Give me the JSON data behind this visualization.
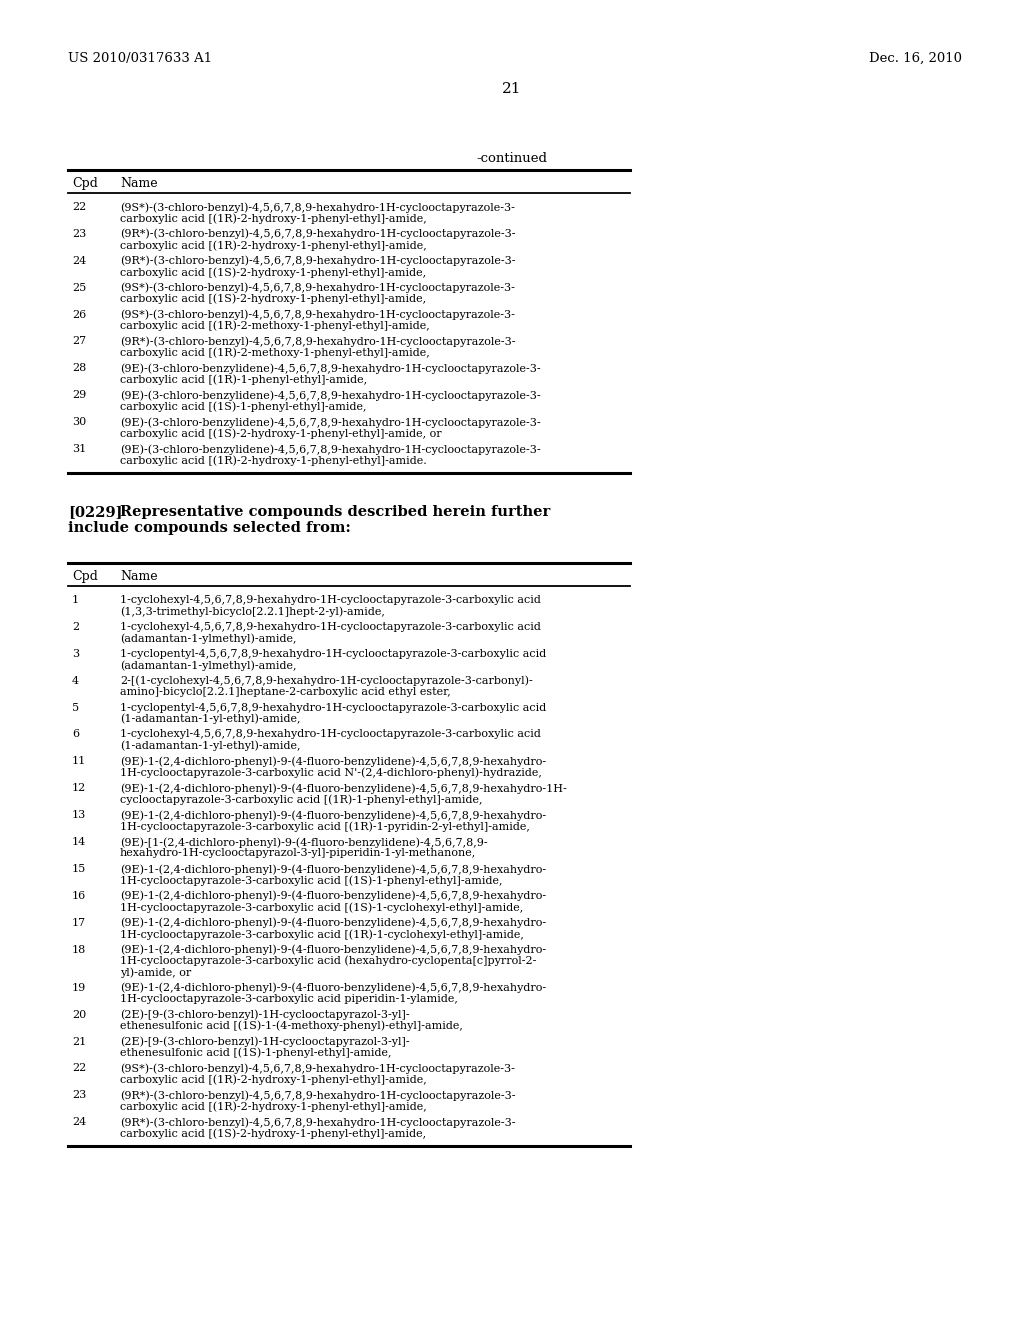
{
  "bg_color": "#ffffff",
  "header_left": "US 2010/0317633 A1",
  "header_right": "Dec. 16, 2010",
  "page_number": "21",
  "section1_title": "-continued",
  "section1_col1": "Cpd",
  "section1_col2": "Name",
  "section1_entries": [
    [
      "22",
      "(9S*)-(3-chloro-benzyl)-4,5,6,7,8,9-hexahydro-1H-cyclooctapyrazole-3-\ncarboxylic acid [(1R)-2-hydroxy-1-phenyl-ethyl]-amide,"
    ],
    [
      "23",
      "(9R*)-(3-chloro-benzyl)-4,5,6,7,8,9-hexahydro-1H-cyclooctapyrazole-3-\ncarboxylic acid [(1R)-2-hydroxy-1-phenyl-ethyl]-amide,"
    ],
    [
      "24",
      "(9R*)-(3-chloro-benzyl)-4,5,6,7,8,9-hexahydro-1H-cyclooctapyrazole-3-\ncarboxylic acid [(1S)-2-hydroxy-1-phenyl-ethyl]-amide,"
    ],
    [
      "25",
      "(9S*)-(3-chloro-benzyl)-4,5,6,7,8,9-hexahydro-1H-cyclooctapyrazole-3-\ncarboxylic acid [(1S)-2-hydroxy-1-phenyl-ethyl]-amide,"
    ],
    [
      "26",
      "(9S*)-(3-chloro-benzyl)-4,5,6,7,8,9-hexahydro-1H-cyclooctapyrazole-3-\ncarboxylic acid [(1R)-2-methoxy-1-phenyl-ethyl]-amide,"
    ],
    [
      "27",
      "(9R*)-(3-chloro-benzyl)-4,5,6,7,8,9-hexahydro-1H-cyclooctapyrazole-3-\ncarboxylic acid [(1R)-2-methoxy-1-phenyl-ethyl]-amide,"
    ],
    [
      "28",
      "(9E)-(3-chloro-benzylidene)-4,5,6,7,8,9-hexahydro-1H-cyclooctapyrazole-3-\ncarboxylic acid [(1R)-1-phenyl-ethyl]-amide,"
    ],
    [
      "29",
      "(9E)-(3-chloro-benzylidene)-4,5,6,7,8,9-hexahydro-1H-cyclooctapyrazole-3-\ncarboxylic acid [(1S)-1-phenyl-ethyl]-amide,"
    ],
    [
      "30",
      "(9E)-(3-chloro-benzylidene)-4,5,6,7,8,9-hexahydro-1H-cyclooctapyrazole-3-\ncarboxylic acid [(1S)-2-hydroxy-1-phenyl-ethyl]-amide, or"
    ],
    [
      "31",
      "(9E)-(3-chloro-benzylidene)-4,5,6,7,8,9-hexahydro-1H-cyclooctapyrazole-3-\ncarboxylic acid [(1R)-2-hydroxy-1-phenyl-ethyl]-amide."
    ]
  ],
  "paragraph_number": "[0229]",
  "paragraph_text_line1": "    Representative compounds described herein further",
  "paragraph_text_line2": "include compounds selected from:",
  "section2_col1": "Cpd",
  "section2_col2": "Name",
  "section2_entries": [
    [
      "1",
      "1-cyclohexyl-4,5,6,7,8,9-hexahydro-1H-cyclooctapyrazole-3-carboxylic acid\n(1,3,3-trimethyl-bicyclo[2.2.1]hept-2-yl)-amide,"
    ],
    [
      "2",
      "1-cyclohexyl-4,5,6,7,8,9-hexahydro-1H-cyclooctapyrazole-3-carboxylic acid\n(adamantan-1-ylmethyl)-amide,"
    ],
    [
      "3",
      "1-cyclopentyl-4,5,6,7,8,9-hexahydro-1H-cyclooctapyrazole-3-carboxylic acid\n(adamantan-1-ylmethyl)-amide,"
    ],
    [
      "4",
      "2-[(1-cyclohexyl-4,5,6,7,8,9-hexahydro-1H-cyclooctapyrazole-3-carbonyl)-\namino]-bicyclo[2.2.1]heptane-2-carboxylic acid ethyl ester,"
    ],
    [
      "5",
      "1-cyclopentyl-4,5,6,7,8,9-hexahydro-1H-cyclooctapyrazole-3-carboxylic acid\n(1-adamantan-1-yl-ethyl)-amide,"
    ],
    [
      "6",
      "1-cyclohexyl-4,5,6,7,8,9-hexahydro-1H-cyclooctapyrazole-3-carboxylic acid\n(1-adamantan-1-yl-ethyl)-amide,"
    ],
    [
      "11",
      "(9E)-1-(2,4-dichloro-phenyl)-9-(4-fluoro-benzylidene)-4,5,6,7,8,9-hexahydro-\n1H-cyclooctapyrazole-3-carboxylic acid N'-(2,4-dichloro-phenyl)-hydrazide,"
    ],
    [
      "12",
      "(9E)-1-(2,4-dichloro-phenyl)-9-(4-fluoro-benzylidene)-4,5,6,7,8,9-hexahydro-1H-\ncyclooctapyrazole-3-carboxylic acid [(1R)-1-phenyl-ethyl]-amide,"
    ],
    [
      "13",
      "(9E)-1-(2,4-dichloro-phenyl)-9-(4-fluoro-benzylidene)-4,5,6,7,8,9-hexahydro-\n1H-cyclooctapyrazole-3-carboxylic acid [(1R)-1-pyridin-2-yl-ethyl]-amide,"
    ],
    [
      "14",
      "(9E)-[1-(2,4-dichloro-phenyl)-9-(4-fluoro-benzylidene)-4,5,6,7,8,9-\nhexahydro-1H-cyclooctapyrazol-3-yl]-piperidin-1-yl-methanone,"
    ],
    [
      "15",
      "(9E)-1-(2,4-dichloro-phenyl)-9-(4-fluoro-benzylidene)-4,5,6,7,8,9-hexahydro-\n1H-cyclooctapyrazole-3-carboxylic acid [(1S)-1-phenyl-ethyl]-amide,"
    ],
    [
      "16",
      "(9E)-1-(2,4-dichloro-phenyl)-9-(4-fluoro-benzylidene)-4,5,6,7,8,9-hexahydro-\n1H-cyclooctapyrazole-3-carboxylic acid [(1S)-1-cyclohexyl-ethyl]-amide,"
    ],
    [
      "17",
      "(9E)-1-(2,4-dichloro-phenyl)-9-(4-fluoro-benzylidene)-4,5,6,7,8,9-hexahydro-\n1H-cyclooctapyrazole-3-carboxylic acid [(1R)-1-cyclohexyl-ethyl]-amide,"
    ],
    [
      "18",
      "(9E)-1-(2,4-dichloro-phenyl)-9-(4-fluoro-benzylidene)-4,5,6,7,8,9-hexahydro-\n1H-cyclooctapyrazole-3-carboxylic acid (hexahydro-cyclopenta[c]pyrrol-2-\nyl)-amide, or"
    ],
    [
      "19",
      "(9E)-1-(2,4-dichloro-phenyl)-9-(4-fluoro-benzylidene)-4,5,6,7,8,9-hexahydro-\n1H-cyclooctapyrazole-3-carboxylic acid piperidin-1-ylamide,"
    ],
    [
      "20",
      "(2E)-[9-(3-chloro-benzyl)-1H-cyclooctapyrazol-3-yl]-\nethenesulfonic acid [(1S)-1-(4-methoxy-phenyl)-ethyl]-amide,"
    ],
    [
      "21",
      "(2E)-[9-(3-chloro-benzyl)-1H-cyclooctapyrazol-3-yl]-\nethenesulfonic acid [(1S)-1-phenyl-ethyl]-amide,"
    ],
    [
      "22",
      "(9S*)-(3-chloro-benzyl)-4,5,6,7,8,9-hexahydro-1H-cyclooctapyrazole-3-\ncarboxylic acid [(1R)-2-hydroxy-1-phenyl-ethyl]-amide,"
    ],
    [
      "23",
      "(9R*)-(3-chloro-benzyl)-4,5,6,7,8,9-hexahydro-1H-cyclooctapyrazole-3-\ncarboxylic acid [(1R)-2-hydroxy-1-phenyl-ethyl]-amide,"
    ],
    [
      "24",
      "(9R*)-(3-chloro-benzyl)-4,5,6,7,8,9-hexahydro-1H-cyclooctapyrazole-3-\ncarboxylic acid [(1S)-2-hydroxy-1-phenyl-ethyl]-amide,"
    ]
  ]
}
